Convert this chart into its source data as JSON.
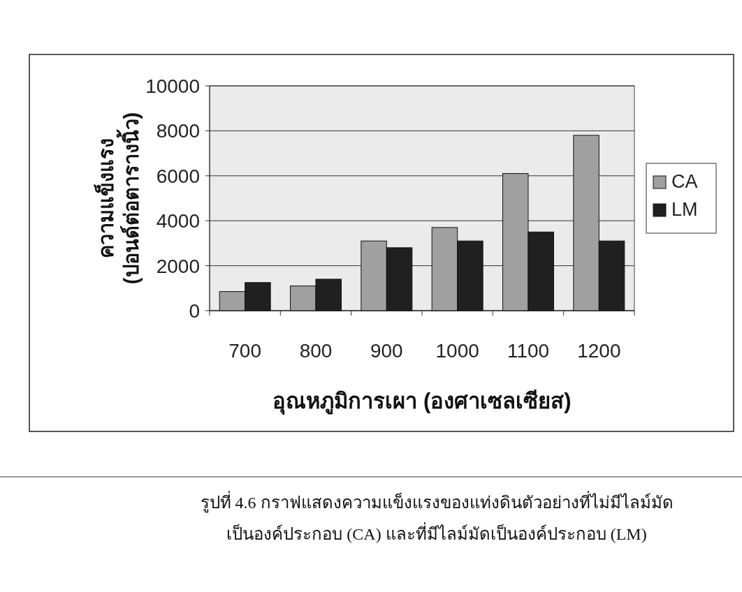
{
  "chart_data": {
    "type": "bar",
    "xlabel": "อุณหภูมิการเผา (องศาเซลเซียส)",
    "ylabel": "ความแข็งแรง\n(ปอนด์ต่อตารางนิ้ว)",
    "categories": [
      "700",
      "800",
      "900",
      "1000",
      "1100",
      "1200"
    ],
    "series": [
      {
        "name": "CA",
        "color": "#a0a0a0",
        "values": [
          850,
          1100,
          3100,
          3700,
          6100,
          7800
        ]
      },
      {
        "name": "LM",
        "color": "#202020",
        "values": [
          1250,
          1400,
          2800,
          3100,
          3500,
          3100
        ]
      }
    ],
    "ylim": [
      0,
      10000
    ],
    "yticks": [
      0,
      2000,
      4000,
      6000,
      8000,
      10000
    ],
    "grid": "y",
    "legend": "right",
    "annotations": [
      "รูปที่ 4.6 กราฟแสดงความแข็งแรงของแท่งดินตัวอย่างที่ไม่มีไลม์มัด",
      "เป็นองค์ประกอบ (CA) และที่มีไลม์มัดเป็นองค์ประกอบ (LM)"
    ]
  }
}
